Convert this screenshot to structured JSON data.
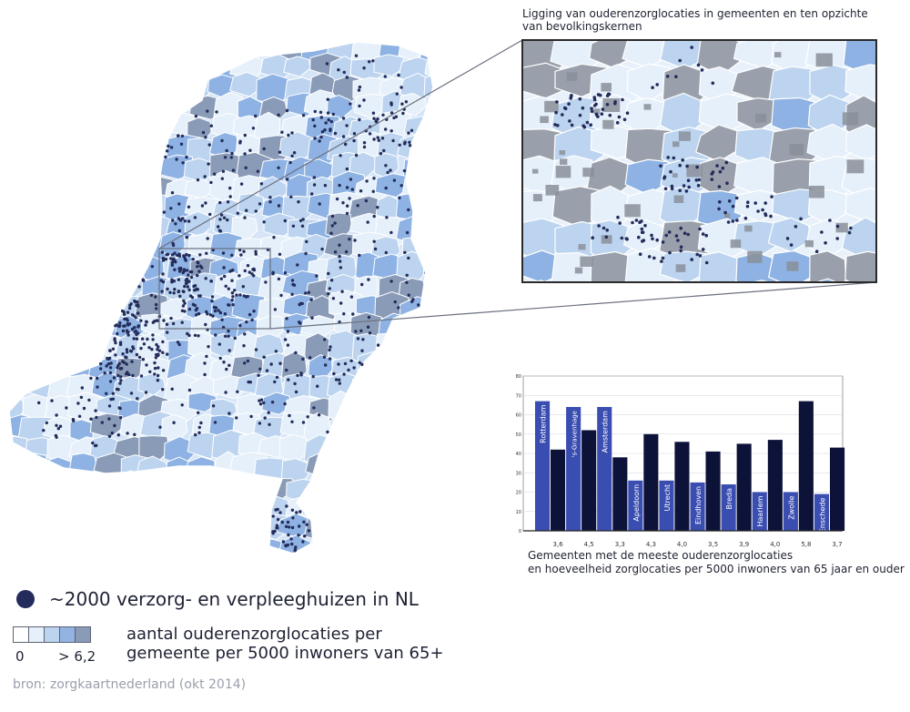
{
  "inset": {
    "title": "Ligging van ouderenzorglocaties in gemeenten en ten opzichte van bevolkingskernen"
  },
  "legend": {
    "dot_label": "~2000 verzorg- en verpleeghuizen in NL",
    "scale_min": "0",
    "scale_max": "> 6,2",
    "scale_label_line1": "aantal ouderenzorglocaties per",
    "scale_label_line2": "gemeente per 5000 inwoners van 65+",
    "scale_colors": [
      "#ffffff",
      "#e6f0fa",
      "#bcd4ef",
      "#93b4e3",
      "#8a9bb8"
    ]
  },
  "source": "bron: zorgkaartnederland (okt 2014)",
  "colors": {
    "dot": "#232c5a",
    "bar_light": "#3a4db0",
    "bar_dark": "#0d1238",
    "chart_border": "#333333",
    "map_light": "#e6f0fa",
    "map_mid": "#bcd4ef",
    "map_strong": "#8eb2e3",
    "map_grey": "#8a9bb8"
  },
  "chart_data": {
    "type": "bar",
    "categories": [
      "Rotterdam",
      "'s-Gravenhage",
      "Amsterdam",
      "Apeldoorn",
      "Utrecht",
      "Eindhoven",
      "Breda",
      "Haarlem",
      "Zwolle",
      "Enschede"
    ],
    "series": [
      {
        "values": [
          67,
          64,
          64,
          26,
          26,
          25,
          24,
          20,
          20,
          19
        ]
      },
      {
        "values": [
          42,
          52,
          38,
          50,
          46,
          41,
          45,
          47,
          67,
          43
        ]
      }
    ],
    "dark_labels": [
      "3,6",
      "4,5",
      "3,3",
      "4,3",
      "4,0",
      "3,5",
      "3,9",
      "4,0",
      "5,8",
      "3,7"
    ],
    "yticks": [
      0,
      10,
      20,
      30,
      40,
      50,
      60,
      70,
      80
    ],
    "ylim": [
      0,
      80
    ],
    "caption_line1": "Gemeenten met de meeste ouderenzorglocaties",
    "caption_line2": "en hoeveelheid zorglocaties per 5000 inwoners van 65 jaar en ouder"
  }
}
